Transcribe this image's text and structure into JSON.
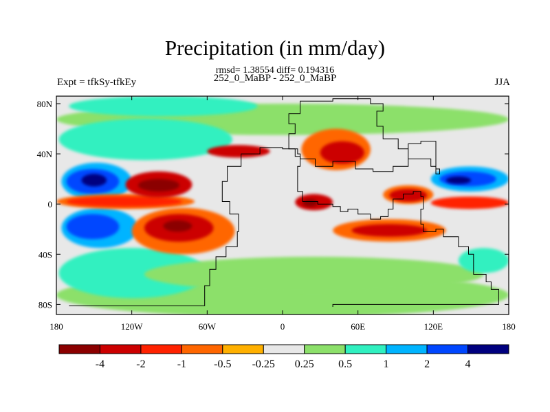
{
  "title": "Precipitation (in mm/day)",
  "stats": "rmsd= 1.38554 diff= 0.194316",
  "subtitle": "252_0_MaBP - 252_0_MaBP",
  "left_label": "Expt = tfkSy-tfkEy",
  "right_label": "JJA",
  "lon_ticks": [
    {
      "value": -180,
      "label": "180"
    },
    {
      "value": -120,
      "label": "120W"
    },
    {
      "value": -60,
      "label": "60W"
    },
    {
      "value": 0,
      "label": "0"
    },
    {
      "value": 60,
      "label": "60E"
    },
    {
      "value": 120,
      "label": "120E"
    },
    {
      "value": 180,
      "label": "180"
    }
  ],
  "lat_ticks": [
    {
      "value": 80,
      "label": "80N"
    },
    {
      "value": 40,
      "label": "40N"
    },
    {
      "value": 0,
      "label": "0"
    },
    {
      "value": -40,
      "label": "40S"
    },
    {
      "value": -80,
      "label": "80S"
    }
  ],
  "colorbar": {
    "colors": [
      "#8b0000",
      "#cc0000",
      "#ff2200",
      "#ff6600",
      "#ffb000",
      "#e8e8e8",
      "#8ce06a",
      "#30f0c0",
      "#00b4ff",
      "#0046ff",
      "#00007f"
    ],
    "labels": [
      "-4",
      "-2",
      "-1",
      "-0.5",
      "-0.25",
      "0.25",
      "0.5",
      "1",
      "2",
      "4"
    ]
  },
  "background_color": "#e8e8e8",
  "regions": [
    {
      "name": "north-high-lat-band",
      "color": "#8ce06a",
      "lon": [
        -180,
        180
      ],
      "lat": [
        55,
        80
      ]
    },
    {
      "name": "south-high-lat-band",
      "color": "#8ce06a",
      "lon": [
        -180,
        180
      ],
      "lat": [
        -90,
        -55
      ]
    },
    {
      "name": "arctic-turquoise",
      "color": "#30f0c0",
      "lon": [
        -170,
        -20
      ],
      "lat": [
        70,
        86
      ]
    },
    {
      "name": "north-pacific-turquoise",
      "color": "#30f0c0",
      "lon": [
        -178,
        -40
      ],
      "lat": [
        35,
        68
      ]
    },
    {
      "name": "north-pacific-lightblue",
      "color": "#00b4ff",
      "lon": [
        -176,
        -120
      ],
      "lat": [
        3,
        33
      ]
    },
    {
      "name": "north-pacific-blue",
      "color": "#0046ff",
      "lon": [
        -172,
        -130
      ],
      "lat": [
        8,
        28
      ]
    },
    {
      "name": "north-pacific-navy",
      "color": "#00007f",
      "lon": [
        -160,
        -140
      ],
      "lat": [
        14,
        24
      ]
    },
    {
      "name": "south-pacific-turquoise",
      "color": "#30f0c0",
      "lon": [
        -178,
        -60
      ],
      "lat": [
        -75,
        -35
      ]
    },
    {
      "name": "south-pacific-lightblue",
      "color": "#00b4ff",
      "lon": [
        -176,
        -115
      ],
      "lat": [
        -35,
        -3
      ]
    },
    {
      "name": "south-pacific-blue",
      "color": "#0046ff",
      "lon": [
        -172,
        -130
      ],
      "lat": [
        -28,
        -8
      ]
    },
    {
      "name": "equatorial-pacific-orange",
      "color": "#ff6600",
      "lon": [
        -180,
        -70
      ],
      "lat": [
        -4,
        8
      ]
    },
    {
      "name": "equatorial-pacific-red",
      "color": "#ff2200",
      "lon": [
        -172,
        -80
      ],
      "lat": [
        -2,
        6
      ]
    },
    {
      "name": "npac-dry-red",
      "color": "#cc0000",
      "lon": [
        -125,
        -72
      ],
      "lat": [
        5,
        26
      ]
    },
    {
      "name": "npac-dry-darkred",
      "color": "#8b0000",
      "lon": [
        -115,
        -82
      ],
      "lat": [
        10,
        20
      ]
    },
    {
      "name": "spac-dry-orange",
      "color": "#ff6600",
      "lon": [
        -120,
        -38
      ],
      "lat": [
        -40,
        -3
      ]
    },
    {
      "name": "spac-dry-red",
      "color": "#cc0000",
      "lon": [
        -110,
        -55
      ],
      "lat": [
        -30,
        -8
      ]
    },
    {
      "name": "spac-dry-darkred",
      "color": "#8b0000",
      "lon": [
        -95,
        -72
      ],
      "lat": [
        -22,
        -13
      ]
    },
    {
      "name": "tethys-north-red",
      "color": "#cc0000",
      "lon": [
        -60,
        -10
      ],
      "lat": [
        37,
        47
      ]
    },
    {
      "name": "asia-orange",
      "color": "#ff6600",
      "lon": [
        15,
        70
      ],
      "lat": [
        27,
        60
      ]
    },
    {
      "name": "asia-red",
      "color": "#cc0000",
      "lon": [
        30,
        65
      ],
      "lat": [
        32,
        50
      ]
    },
    {
      "name": "tethys-west-red",
      "color": "#cc0000",
      "lon": [
        10,
        40
      ],
      "lat": [
        -5,
        8
      ]
    },
    {
      "name": "tethys-west-darkred",
      "color": "#8b0000",
      "lon": [
        16,
        28
      ],
      "lat": [
        -2,
        4
      ]
    },
    {
      "name": "tethys-east-orange",
      "color": "#ff6600",
      "lon": [
        80,
        120
      ],
      "lat": [
        0,
        15
      ]
    },
    {
      "name": "tethys-east-red",
      "color": "#cc0000",
      "lon": [
        85,
        115
      ],
      "lat": [
        2,
        12
      ]
    },
    {
      "name": "east-tethys-lightblue",
      "color": "#00b4ff",
      "lon": [
        118,
        180
      ],
      "lat": [
        10,
        30
      ]
    },
    {
      "name": "east-tethys-blue",
      "color": "#0046ff",
      "lon": [
        125,
        170
      ],
      "lat": [
        14,
        26
      ]
    },
    {
      "name": "east-tethys-navy",
      "color": "#00007f",
      "lon": [
        130,
        150
      ],
      "lat": [
        16,
        22
      ]
    },
    {
      "name": "east-tethys-equator-red",
      "color": "#ff2200",
      "lon": [
        118,
        180
      ],
      "lat": [
        -4,
        6
      ]
    },
    {
      "name": "east-tethys-south-orange",
      "color": "#ff6600",
      "lon": [
        40,
        130
      ],
      "lat": [
        -30,
        -12
      ]
    },
    {
      "name": "east-tethys-south-red",
      "color": "#cc0000",
      "lon": [
        55,
        115
      ],
      "lat": [
        -26,
        -16
      ]
    },
    {
      "name": "south-gondwana-green",
      "color": "#8ce06a",
      "lon": [
        -110,
        160
      ],
      "lat": [
        -70,
        -42
      ]
    },
    {
      "name": "south-gondwana-turquoise",
      "color": "#30f0c0",
      "lon": [
        140,
        180
      ],
      "lat": [
        -55,
        -35
      ]
    }
  ],
  "coastline": [
    [
      -170,
      -81
    ],
    [
      -63,
      -81
    ],
    [
      -62,
      -65
    ],
    [
      -58,
      -52
    ],
    [
      -53,
      -42
    ],
    [
      -45,
      -34
    ],
    [
      -36,
      -22
    ],
    [
      -35,
      -8
    ],
    [
      -42,
      2
    ],
    [
      -48,
      18
    ],
    [
      -44,
      30
    ],
    [
      -33,
      40
    ],
    [
      -18,
      45
    ],
    [
      0,
      44
    ],
    [
      12,
      40
    ],
    [
      14,
      30
    ],
    [
      12,
      10
    ],
    [
      16,
      2
    ],
    [
      28,
      0
    ],
    [
      40,
      -2
    ],
    [
      46,
      -6
    ],
    [
      52,
      -4
    ],
    [
      60,
      -8
    ],
    [
      70,
      -12
    ],
    [
      78,
      -10
    ],
    [
      84,
      -4
    ],
    [
      88,
      4
    ],
    [
      96,
      8
    ],
    [
      104,
      10
    ],
    [
      110,
      6
    ],
    [
      112,
      -4
    ],
    [
      110,
      -16
    ],
    [
      112,
      -22
    ],
    [
      122,
      -20
    ],
    [
      128,
      -26
    ],
    [
      140,
      -34
    ],
    [
      148,
      -40
    ],
    [
      152,
      -56
    ],
    [
      162,
      -62
    ],
    [
      166,
      -68
    ],
    [
      172,
      -72
    ],
    [
      172,
      -80
    ],
    [
      40,
      -82
    ]
  ],
  "north_landmass": [
    [
      10,
      44
    ],
    [
      5,
      56
    ],
    [
      10,
      64
    ],
    [
      5,
      72
    ],
    [
      14,
      82
    ],
    [
      40,
      84
    ],
    [
      70,
      80
    ],
    [
      80,
      74
    ],
    [
      75,
      62
    ],
    [
      80,
      52
    ],
    [
      92,
      44
    ],
    [
      100,
      36
    ],
    [
      112,
      36
    ],
    [
      118,
      30
    ],
    [
      122,
      24
    ],
    [
      125,
      28
    ],
    [
      122,
      50
    ],
    [
      110,
      48
    ],
    [
      100,
      30
    ],
    [
      88,
      26
    ],
    [
      72,
      28
    ],
    [
      58,
      34
    ],
    [
      40,
      30
    ],
    [
      26,
      36
    ],
    [
      14,
      38
    ],
    [
      10,
      44
    ]
  ]
}
